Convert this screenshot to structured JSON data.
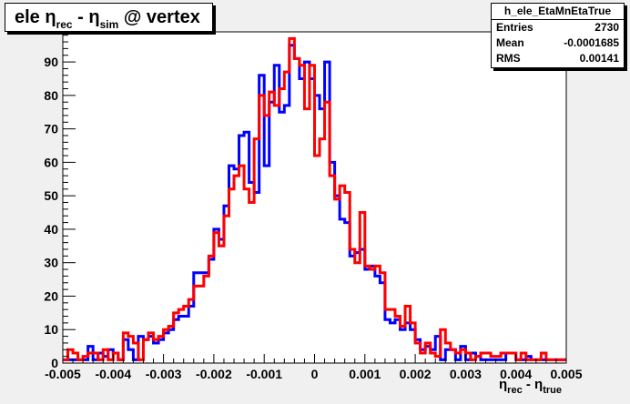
{
  "title": {
    "main": "ele ",
    "eta1": "η",
    "sub1": "rec",
    "mid": " - ",
    "eta2": "η",
    "sub2": "sim",
    "tail": " @ vertex"
  },
  "stats": {
    "name": "h_ele_EtaMnEtaTrue",
    "rows": [
      {
        "label": "Entries",
        "value": "2730"
      },
      {
        "label": "Mean",
        "value": "-0.0001685"
      },
      {
        "label": "RMS",
        "value": "0.00141"
      }
    ]
  },
  "xaxis_title": {
    "eta1": "η",
    "sub1": "rec",
    "mid": " - ",
    "eta2": "η",
    "sub2": "true"
  },
  "colors": {
    "series_blue": "#0000ff",
    "series_red": "#ff0000",
    "frame_bg": "#ffffff",
    "canvas_bg": "#f0f0f0"
  },
  "chart_data": {
    "type": "histogram",
    "xlim": [
      -0.005,
      0.005
    ],
    "ylim": [
      0,
      99
    ],
    "bins": 100,
    "x_ticks": [
      "-0.005",
      "-0.004",
      "-0.003",
      "-0.002",
      "-0.001",
      "0",
      "0.001",
      "0.002",
      "0.003",
      "0.004",
      "0.005"
    ],
    "y_ticks": [
      "0",
      "10",
      "20",
      "30",
      "40",
      "50",
      "60",
      "70",
      "80",
      "90"
    ],
    "series": [
      {
        "color": "#0000ff",
        "values": [
          1,
          1,
          1,
          1,
          1,
          5,
          1,
          3,
          2,
          4,
          3,
          1,
          7,
          4,
          1,
          8,
          7,
          8,
          6,
          7,
          9,
          10,
          13,
          14,
          14,
          17,
          27,
          27,
          27,
          31,
          40,
          37,
          47,
          59,
          58,
          68,
          69,
          54,
          51,
          86,
          59,
          78,
          89,
          75,
          77,
          95,
          91,
          85,
          90,
          85,
          80,
          76,
          90,
          60,
          50,
          43,
          42,
          32,
          33,
          34,
          28,
          29,
          26,
          24,
          13,
          12,
          13,
          10,
          12,
          10,
          7,
          4,
          5,
          4,
          8,
          1,
          4,
          4,
          1,
          5,
          1,
          3,
          2,
          1,
          1,
          1,
          1,
          1,
          3,
          3,
          1,
          1,
          2,
          1,
          1,
          1,
          1,
          1,
          1,
          1
        ]
      },
      {
        "color": "#ff0000",
        "values": [
          1,
          4,
          3,
          1,
          2,
          3,
          3,
          1,
          4,
          1,
          3,
          1,
          9,
          8,
          6,
          1,
          7,
          9,
          7,
          8,
          10,
          11,
          15,
          16,
          17,
          19,
          23,
          23,
          26,
          32,
          39,
          35,
          44,
          52,
          56,
          59,
          52,
          48,
          67,
          80,
          74,
          81,
          77,
          82,
          87,
          97,
          91,
          89,
          76,
          89,
          62,
          67,
          78,
          56,
          49,
          53,
          51,
          34,
          30,
          45,
          29,
          28,
          29,
          27,
          16,
          16,
          14,
          11,
          17,
          12,
          6,
          3,
          6,
          3,
          2,
          10,
          6,
          4,
          3,
          4,
          3,
          1,
          2,
          3,
          3,
          2,
          2,
          3,
          3,
          3,
          1,
          3,
          1,
          1,
          1,
          3,
          1,
          1,
          1,
          1
        ]
      }
    ]
  }
}
